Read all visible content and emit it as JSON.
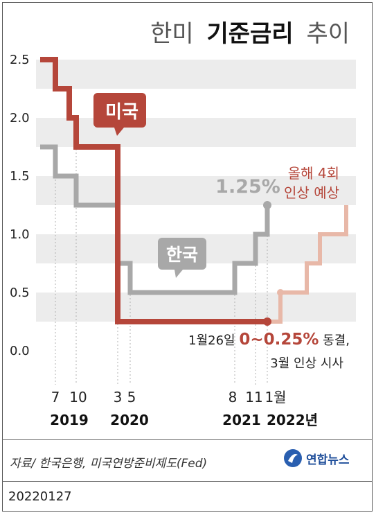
{
  "title": {
    "prefix": "한미",
    "bold": "기준금리",
    "suffix": "추이"
  },
  "chart_data": {
    "type": "line",
    "title": "한미 기준금리 추이",
    "ylim": [
      0,
      2.5
    ],
    "y_ticks": [
      "2.5",
      "2.0",
      "1.5",
      "1.0",
      "0.5",
      "0.0"
    ],
    "grid": "alternating bands",
    "series": [
      {
        "name": "미국",
        "color": "#b5463a",
        "points": [
          [
            "2019-01",
            2.5
          ],
          [
            "2019-07",
            2.5
          ],
          [
            "2019-07",
            2.25
          ],
          [
            "2019-09",
            2.25
          ],
          [
            "2019-09",
            2.0
          ],
          [
            "2019-10",
            2.0
          ],
          [
            "2019-10",
            1.75
          ],
          [
            "2020-03",
            1.75
          ],
          [
            "2020-03",
            1.25
          ],
          [
            "2020-03",
            1.25
          ],
          [
            "2020-03",
            0.25
          ],
          [
            "2022-01",
            0.25
          ]
        ]
      },
      {
        "name": "한국",
        "color": "#a8a8a8",
        "points": [
          [
            "2019-01",
            1.75
          ],
          [
            "2019-07",
            1.75
          ],
          [
            "2019-07",
            1.5
          ],
          [
            "2019-10",
            1.5
          ],
          [
            "2019-10",
            1.25
          ],
          [
            "2020-03",
            1.25
          ],
          [
            "2020-03",
            0.75
          ],
          [
            "2020-05",
            0.75
          ],
          [
            "2020-05",
            0.5
          ],
          [
            "2021-08",
            0.5
          ],
          [
            "2021-08",
            0.75
          ],
          [
            "2021-11",
            0.75
          ],
          [
            "2021-11",
            1.0
          ],
          [
            "2022-01",
            1.0
          ],
          [
            "2022-01",
            1.25
          ]
        ]
      },
      {
        "name": "올해 4회 인상 예상",
        "color": "#e8b8a8",
        "points": [
          [
            "2022-01",
            0.25
          ],
          [
            "2022-02",
            0.25
          ],
          [
            "2022-02",
            0.5
          ],
          [
            "2022-04",
            0.5
          ],
          [
            "2022-04",
            0.75
          ],
          [
            "2022-05",
            0.75
          ],
          [
            "2022-05",
            1.0
          ],
          [
            "2022-07",
            1.0
          ],
          [
            "2022-07",
            1.25
          ]
        ]
      }
    ],
    "x_tick_labels": [
      "7",
      "10",
      "3",
      "5",
      "8",
      "11",
      "1월"
    ],
    "year_labels": [
      "2019",
      "2020",
      "2021",
      "2022년"
    ],
    "annotations": {
      "us_label": "미국",
      "kr_label": "한국",
      "kr_value": "1.25%",
      "forecast_line1": "올해 4회",
      "forecast_line2": "인상 예상",
      "note_prefix": "1월26일 ",
      "note_value": "0~0.25%",
      "note_suffix": " 동결,",
      "note_line2": "3월 인상 시사"
    }
  },
  "footer": {
    "source": "자료/ 한국은행, 미국연방준비제도(Fed)",
    "logo_text": "연합뉴스",
    "date": "20220127"
  },
  "colors": {
    "us": "#b5463a",
    "kr": "#a8a8a8",
    "forecast": "#e8b8a8",
    "band": "#ececec",
    "guide": "#b0b0b0"
  }
}
